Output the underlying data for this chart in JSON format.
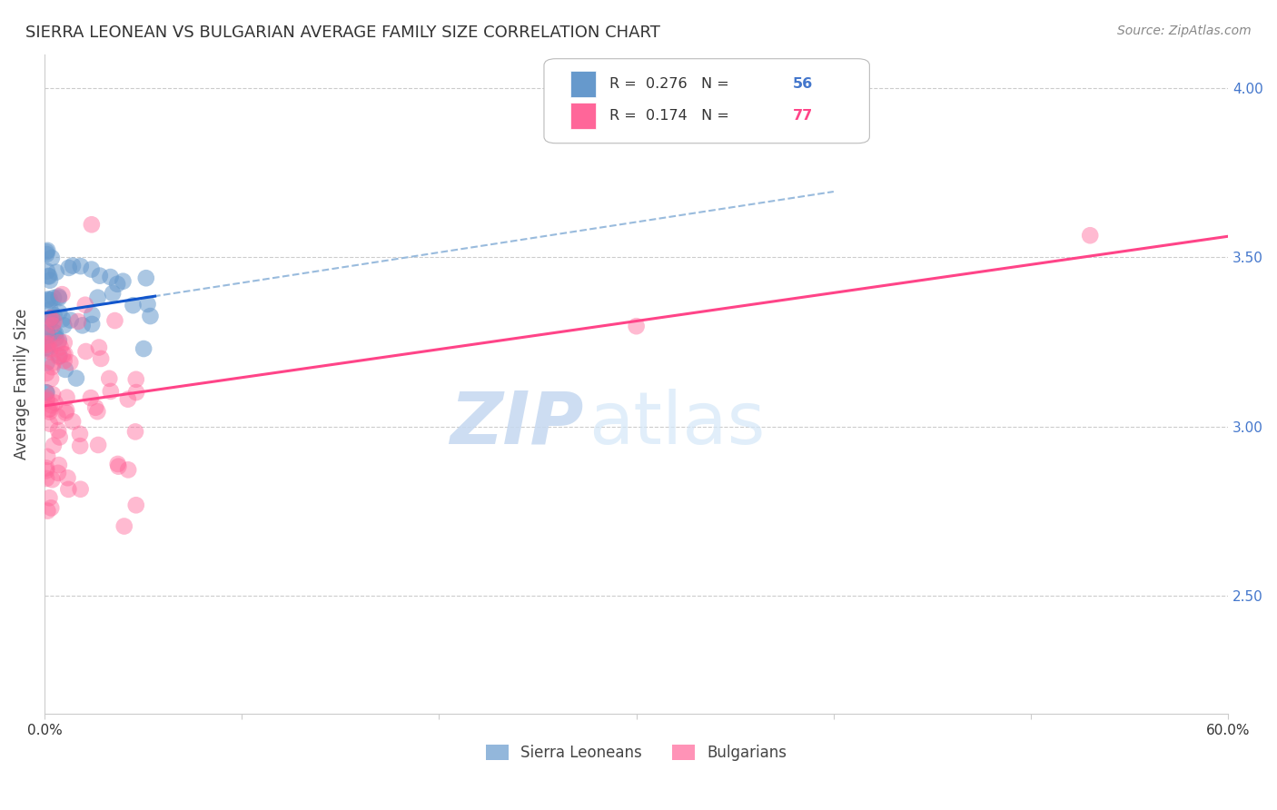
{
  "title": "SIERRA LEONEAN VS BULGARIAN AVERAGE FAMILY SIZE CORRELATION CHART",
  "source": "Source: ZipAtlas.com",
  "ylabel": "Average Family Size",
  "yticks": [
    2.5,
    3.0,
    3.5,
    4.0
  ],
  "xticks_pct": [
    0.0,
    0.1,
    0.2,
    0.3,
    0.4,
    0.5,
    0.6
  ],
  "xlim": [
    0.0,
    0.6
  ],
  "ylim": [
    2.15,
    4.1
  ],
  "legend_R_blue": "0.276",
  "legend_N_blue": "56",
  "legend_R_pink": "0.174",
  "legend_N_pink": "77",
  "legend_label_blue": "Sierra Leoneans",
  "legend_label_pink": "Bulgarians",
  "blue_color": "#6699CC",
  "pink_color": "#FF6699",
  "blue_line_color": "#1155CC",
  "pink_line_color": "#FF4488",
  "dashed_line_color": "#99BBDD",
  "watermark_zip": "ZIP",
  "watermark_atlas": "atlas",
  "n_blue": 56,
  "n_pink": 77
}
